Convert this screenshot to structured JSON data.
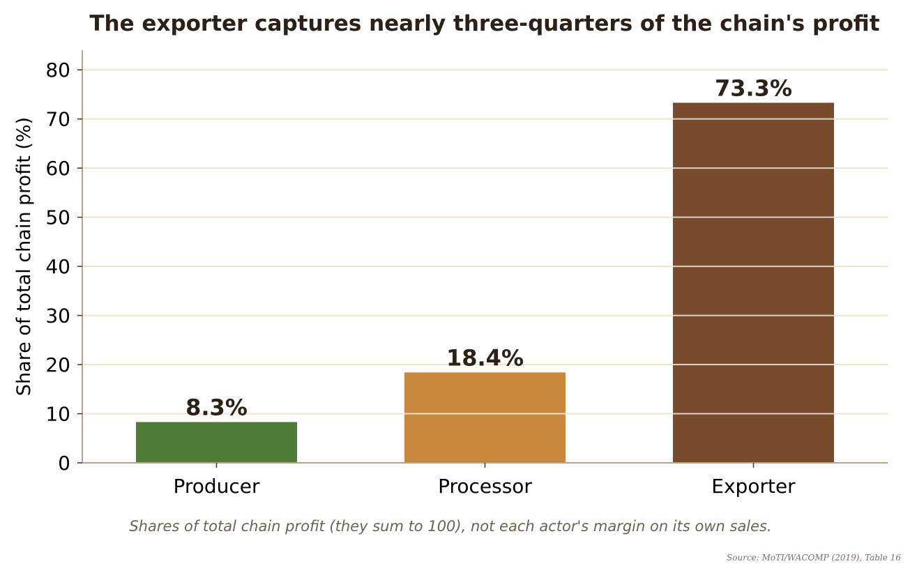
{
  "chart_data": {
    "type": "bar",
    "title": "The exporter captures nearly three-quarters of the chain's profit",
    "xlabel": "",
    "ylabel": "Share of total chain profit (%)",
    "categories": [
      "Producer",
      "Processor",
      "Exporter"
    ],
    "values": [
      8.3,
      18.4,
      73.3
    ],
    "value_labels": [
      "8.3%",
      "18.4%",
      "73.3%"
    ],
    "bar_colors": [
      "#4e7b35",
      "#c8893c",
      "#774b2b"
    ],
    "ylim": [
      0,
      84
    ],
    "yticks": [
      0,
      10,
      20,
      30,
      40,
      50,
      60,
      70,
      80
    ],
    "grid": true,
    "grid_color": "#efe4cc",
    "axis_color": "#b5a58a",
    "note": "Shares of total chain profit (they sum to 100), not each actor's margin on its own sales.",
    "source": "Source: MoTI/WACOMP (2019), Table 16"
  }
}
